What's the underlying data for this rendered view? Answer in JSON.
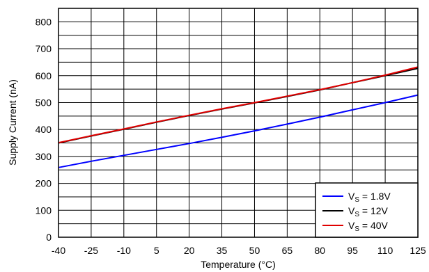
{
  "chart_data": {
    "type": "line",
    "xlabel": "Temperature (°C)",
    "ylabel": "Supply Current (nA)",
    "xlim": [
      -40,
      125
    ],
    "ylim": [
      0,
      850
    ],
    "x_ticks": [
      -40,
      -25,
      -10,
      5,
      20,
      35,
      50,
      65,
      80,
      95,
      110,
      125
    ],
    "y_ticks": [
      0,
      100,
      200,
      300,
      400,
      500,
      600,
      700,
      800
    ],
    "grid": true,
    "legend_position": "bottom-right",
    "series": [
      {
        "name": "VS = 1.8V",
        "label_main": "V",
        "label_sub": "S",
        "label_rest": " = 1.8V",
        "color": "#0000ff",
        "x": [
          -40,
          -25,
          -10,
          5,
          20,
          35,
          50,
          65,
          80,
          95,
          110,
          125
        ],
        "y": [
          259,
          282,
          304,
          326,
          348,
          371,
          395,
          420,
          446,
          473,
          500,
          528
        ]
      },
      {
        "name": "VS = 12V",
        "label_main": "V",
        "label_sub": "S",
        "label_rest": " = 12V",
        "color": "#000000",
        "x": [
          -40,
          -25,
          -10,
          5,
          20,
          35,
          50,
          65,
          80,
          95,
          110,
          125
        ],
        "y": [
          350,
          376,
          401,
          427,
          452,
          476,
          499,
          523,
          547,
          574,
          600,
          627
        ]
      },
      {
        "name": "VS = 40V",
        "label_main": "V",
        "label_sub": "S",
        "label_rest": " = 40V",
        "color": "#e00000",
        "x": [
          -40,
          -25,
          -10,
          5,
          20,
          35,
          50,
          65,
          80,
          95,
          110,
          125
        ],
        "y": [
          351,
          377,
          402,
          428,
          453,
          477,
          500,
          524,
          548,
          574,
          602,
          632
        ]
      }
    ]
  }
}
